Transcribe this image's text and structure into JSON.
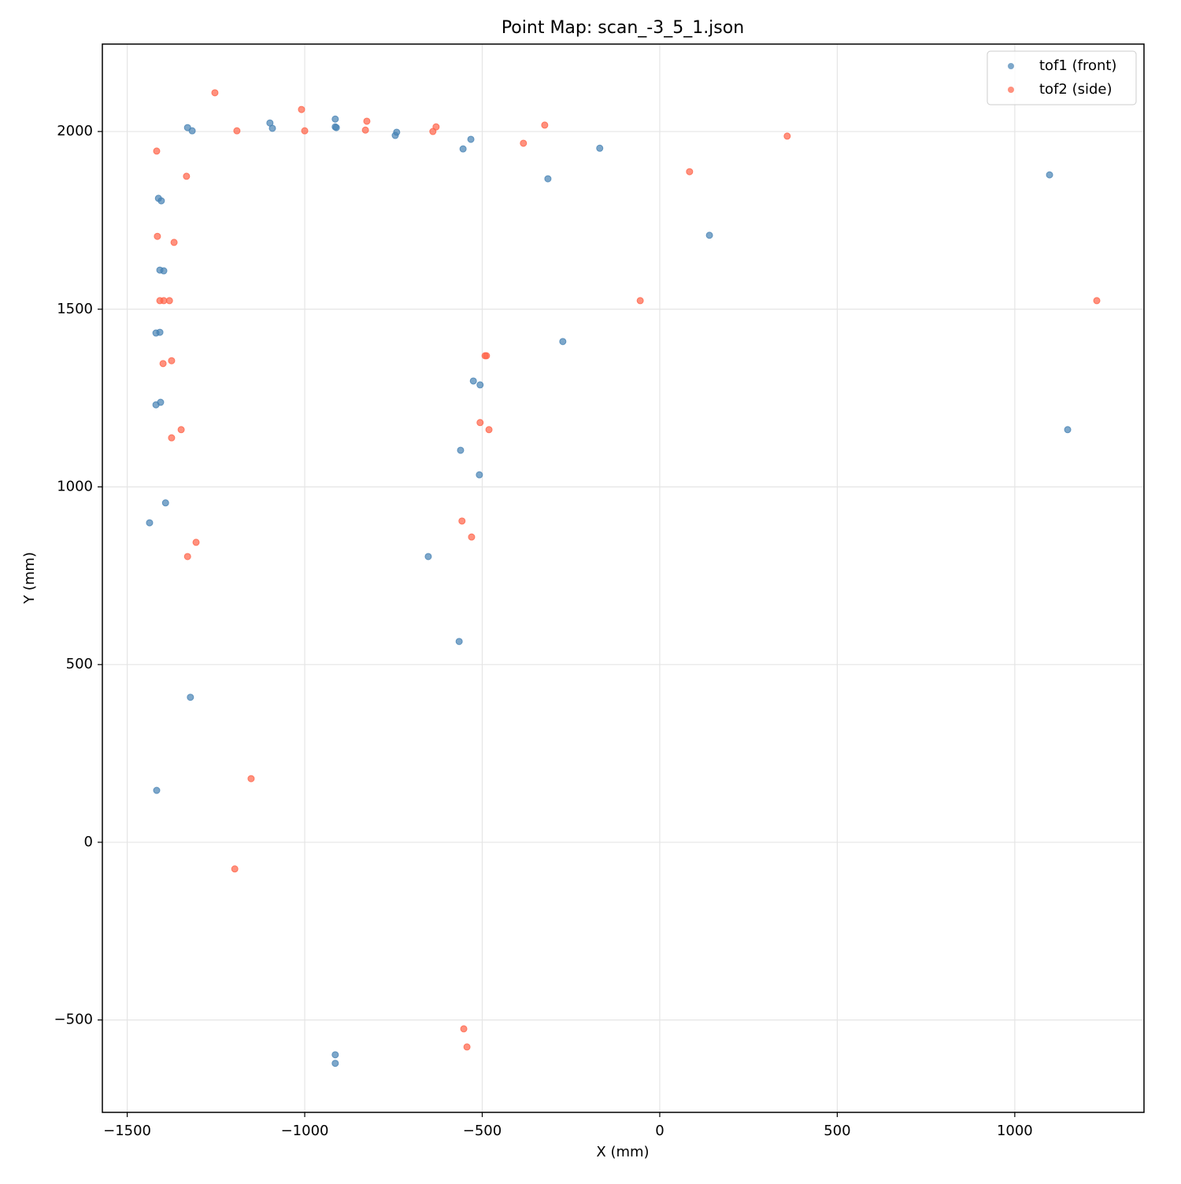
{
  "chart_data": {
    "type": "scatter",
    "title": "Point Map: scan_-3_5_1.json",
    "x_label": "X (mm)",
    "y_label": "Y (mm)",
    "xlim": [
      -1570,
      1364
    ],
    "ylim": [
      -760,
      2246
    ],
    "xticks": [
      {
        "value": -1500,
        "label": "−1500"
      },
      {
        "value": -1000,
        "label": "−1000"
      },
      {
        "value": -500,
        "label": "−500"
      },
      0,
      500,
      1000
    ],
    "yticks": [
      {
        "value": -500,
        "label": "−500"
      },
      0,
      500,
      1000,
      1500,
      2000
    ],
    "grid": true,
    "legend": "upper right",
    "series": [
      {
        "name": "tof1 (front)",
        "color": "#4682b4",
        "x": [
          -1330,
          -1317,
          -1098,
          -1091,
          -914,
          -914,
          -911,
          -741,
          -745,
          -554,
          -532,
          -315,
          -169,
          1098,
          -1412,
          -1404,
          140,
          -1408,
          -1397,
          -1419,
          -1408,
          -273,
          -525,
          -506,
          -1419,
          -1406,
          1149,
          -561,
          -508,
          -1392,
          -1437,
          -652,
          -565,
          -1322,
          -1417,
          -914,
          -914
        ],
        "values": [
          2011,
          2002,
          2024,
          2009,
          2035,
          2013,
          2011,
          1998,
          1989,
          1951,
          1978,
          1867,
          1953,
          1878,
          1812,
          1805,
          1708,
          1610,
          1608,
          1433,
          1435,
          1409,
          1298,
          1287,
          1231,
          1238,
          1161,
          1103,
          1034,
          955,
          899,
          804,
          565,
          408,
          146,
          -598,
          -622
        ]
      },
      {
        "name": "tof2 (side)",
        "color": "#ff6347",
        "x": [
          -1253,
          -1009,
          -1191,
          -1000,
          -825,
          -829,
          -630,
          -639,
          -324,
          -384,
          359,
          -1417,
          -1333,
          84,
          -1415,
          -1368,
          -1408,
          -1397,
          -1381,
          -55,
          1231,
          -492,
          -488,
          -1375,
          -1399,
          -506,
          -481,
          -1348,
          -1375,
          -557,
          -530,
          -1306,
          -1330,
          -1151,
          -1197,
          -552,
          -543
        ],
        "values": [
          2109,
          2062,
          2002,
          2002,
          2029,
          2004,
          2013,
          2000,
          2018,
          1967,
          1987,
          1945,
          1874,
          1887,
          1705,
          1688,
          1524,
          1524,
          1524,
          1524,
          1524,
          1369,
          1369,
          1355,
          1347,
          1181,
          1161,
          1161,
          1138,
          904,
          859,
          844,
          804,
          179,
          -75,
          -525,
          -576
        ]
      }
    ]
  }
}
